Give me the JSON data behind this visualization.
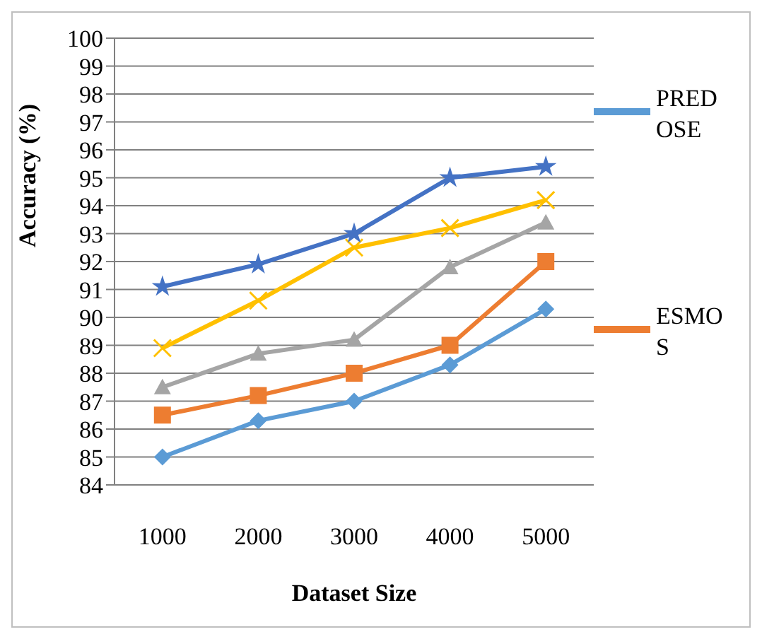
{
  "chart_data": {
    "type": "line",
    "xlabel": "Dataset Size",
    "ylabel": "Accuracy   (%)",
    "categories": [
      "1000",
      "2000",
      "3000",
      "4000",
      "5000"
    ],
    "ylim": [
      84,
      100
    ],
    "yticks": [
      84,
      85,
      86,
      87,
      88,
      89,
      90,
      91,
      92,
      93,
      94,
      95,
      96,
      97,
      98,
      99,
      100
    ],
    "grid": "y",
    "legend": "right",
    "series": [
      {
        "name": "PREDOSE",
        "color": "#5b9bd5",
        "marker": "diamond",
        "values": [
          85,
          86.3,
          87,
          88.3,
          90.3
        ]
      },
      {
        "name": "ESMOS",
        "color": "#ed7d31",
        "marker": "square",
        "values": [
          86.5,
          87.2,
          88,
          89,
          92
        ]
      },
      {
        "color": "#a5a5a5",
        "marker": "triangle",
        "values": [
          87.5,
          88.7,
          89.2,
          91.8,
          93.4
        ]
      },
      {
        "color": "#ffc000",
        "marker": "cross",
        "values": [
          88.9,
          90.6,
          92.5,
          93.2,
          94.2
        ]
      },
      {
        "color": "#4472c4",
        "marker": "star",
        "values": [
          91.1,
          91.9,
          93,
          95,
          95.4
        ]
      }
    ]
  }
}
